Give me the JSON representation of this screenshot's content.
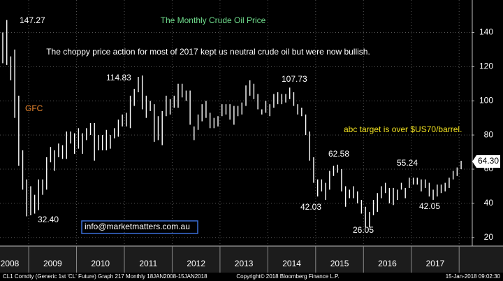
{
  "chart_data": {
    "type": "range-bar",
    "title": "The Monthly Crude Oil Price",
    "subtitle": "The choppy price action for most of 2017 kept us neutral crude oil but were now bullish.",
    "annotations": [
      "147.27",
      "114.83",
      "107.73",
      "GFC",
      "abc target is over $US70/barrel.",
      "62.58",
      "55.24",
      "64.30",
      "42.03",
      "42.05",
      "32.40",
      "26.05",
      "info@marketmatters.com.au"
    ],
    "footer": [
      "CL1 Comdty (Generic 1st 'CL' Future) Graph 217  Monthly 18JAN2008-15JAN2018",
      "Copyright© 2018 Bloomberg Finance L.P.",
      "15-Jan-2018 09:02:30"
    ],
    "color": "#ffffff",
    "grid": true,
    "xlim": [
      2008.4,
      2018.26
    ],
    "xticks": [
      {
        "value": 2008.5,
        "label": "2008"
      },
      {
        "value": 2009.5,
        "label": "2009"
      },
      {
        "value": 2010.5,
        "label": "2010"
      },
      {
        "value": 2011.5,
        "label": "2011"
      },
      {
        "value": 2012.5,
        "label": "2012"
      },
      {
        "value": 2013.5,
        "label": "2013"
      },
      {
        "value": 2014.5,
        "label": "2014"
      },
      {
        "value": 2015.5,
        "label": "2015"
      },
      {
        "value": 2016.5,
        "label": "2016"
      },
      {
        "value": 2017.5,
        "label": "2017"
      }
    ],
    "ylim": [
      15,
      159
    ],
    "yticks": [
      20,
      40,
      60,
      80,
      100,
      120,
      140
    ],
    "x": [
      2008.458,
      2008.542,
      2008.625,
      2008.708,
      2008.792,
      2008.875,
      2008.958,
      2009.042,
      2009.125,
      2009.208,
      2009.292,
      2009.375,
      2009.458,
      2009.542,
      2009.625,
      2009.708,
      2009.792,
      2009.875,
      2009.958,
      2010.042,
      2010.125,
      2010.208,
      2010.292,
      2010.375,
      2010.458,
      2010.542,
      2010.625,
      2010.708,
      2010.792,
      2010.875,
      2010.958,
      2011.042,
      2011.125,
      2011.208,
      2011.292,
      2011.375,
      2011.458,
      2011.542,
      2011.625,
      2011.708,
      2011.792,
      2011.875,
      2011.958,
      2012.042,
      2012.125,
      2012.208,
      2012.292,
      2012.375,
      2012.458,
      2012.542,
      2012.625,
      2012.708,
      2012.792,
      2012.875,
      2012.958,
      2013.042,
      2013.125,
      2013.208,
      2013.292,
      2013.375,
      2013.458,
      2013.542,
      2013.625,
      2013.708,
      2013.792,
      2013.875,
      2013.958,
      2014.042,
      2014.125,
      2014.208,
      2014.292,
      2014.375,
      2014.458,
      2014.542,
      2014.625,
      2014.708,
      2014.792,
      2014.875,
      2014.958,
      2015.042,
      2015.125,
      2015.208,
      2015.292,
      2015.375,
      2015.458,
      2015.542,
      2015.625,
      2015.708,
      2015.792,
      2015.875,
      2015.958,
      2016.042,
      2016.125,
      2016.208,
      2016.292,
      2016.375,
      2016.458,
      2016.542,
      2016.625,
      2016.708,
      2016.792,
      2016.875,
      2016.958,
      2017.042,
      2017.125,
      2017.208,
      2017.292,
      2017.375,
      2017.458,
      2017.542,
      2017.625,
      2017.708,
      2017.792,
      2017.875,
      2017.958,
      2018.042
    ],
    "high": [
      140,
      147.27,
      126,
      130,
      103,
      71,
      54,
      50,
      45,
      54,
      54,
      67,
      73,
      71,
      75,
      74,
      82,
      82,
      81,
      84,
      81,
      84,
      87,
      87,
      80,
      80,
      83,
      80,
      84,
      89,
      92,
      93,
      103,
      107,
      114,
      114.83,
      103,
      100,
      98,
      91,
      94,
      103,
      101,
      103,
      110,
      110,
      106,
      106,
      85,
      92,
      98,
      100,
      93,
      90,
      91,
      98,
      98,
      98,
      97,
      97,
      99,
      109,
      112,
      110,
      104,
      95,
      100,
      98,
      104,
      105,
      104,
      104,
      107.73,
      105,
      98,
      96,
      92,
      82,
      67,
      54,
      54,
      52,
      59,
      62,
      62.58,
      60,
      50,
      48,
      50,
      47,
      42,
      38,
      35,
      42,
      46,
      50,
      52,
      49,
      49,
      48,
      52,
      49,
      55,
      55,
      55,
      54,
      54,
      52,
      48,
      51,
      51,
      52,
      55,
      59,
      61,
      64.89
    ],
    "low": [
      122,
      121,
      112,
      90,
      62,
      48,
      32.4,
      33,
      34,
      36,
      45,
      48,
      64,
      59,
      67,
      66,
      66,
      75,
      69,
      72,
      69,
      77,
      80,
      65,
      71,
      71,
      71,
      72,
      78,
      79,
      85,
      85,
      84,
      97,
      105,
      95,
      90,
      94,
      76,
      77,
      74,
      91,
      92,
      96,
      96,
      102,
      100,
      86,
      77,
      83,
      88,
      90,
      84,
      84,
      85,
      91,
      92,
      89,
      86,
      91,
      92,
      97,
      103,
      101,
      95,
      92,
      93,
      91,
      96,
      98,
      98,
      99,
      101,
      97,
      92,
      91,
      80,
      65,
      52,
      44,
      47,
      42.03,
      48,
      56,
      58,
      47,
      38,
      43,
      43,
      40,
      34,
      26.05,
      26,
      33,
      35,
      43,
      46,
      40,
      39,
      42,
      48,
      43,
      49,
      51,
      51,
      47,
      49,
      44,
      42.05,
      44,
      46,
      47,
      49,
      54,
      56,
      60
    ]
  }
}
